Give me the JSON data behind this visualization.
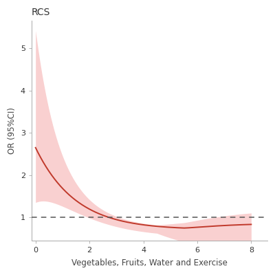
{
  "title": "RCS",
  "xlabel": "Vegetables, Fruits, Water and Exercise",
  "ylabel": "OR (95%CI)",
  "xlim": [
    -0.15,
    8.6
  ],
  "ylim": [
    0.45,
    5.65
  ],
  "yticks": [
    1,
    2,
    3,
    4,
    5
  ],
  "xticks": [
    0,
    2,
    4,
    6,
    8
  ],
  "reference_line": 1.0,
  "line_color": "#c0392b",
  "fill_color": "#f9d0d0",
  "background_color": "#ffffff",
  "title_fontsize": 10,
  "label_fontsize": 8.5,
  "tick_fontsize": 8
}
